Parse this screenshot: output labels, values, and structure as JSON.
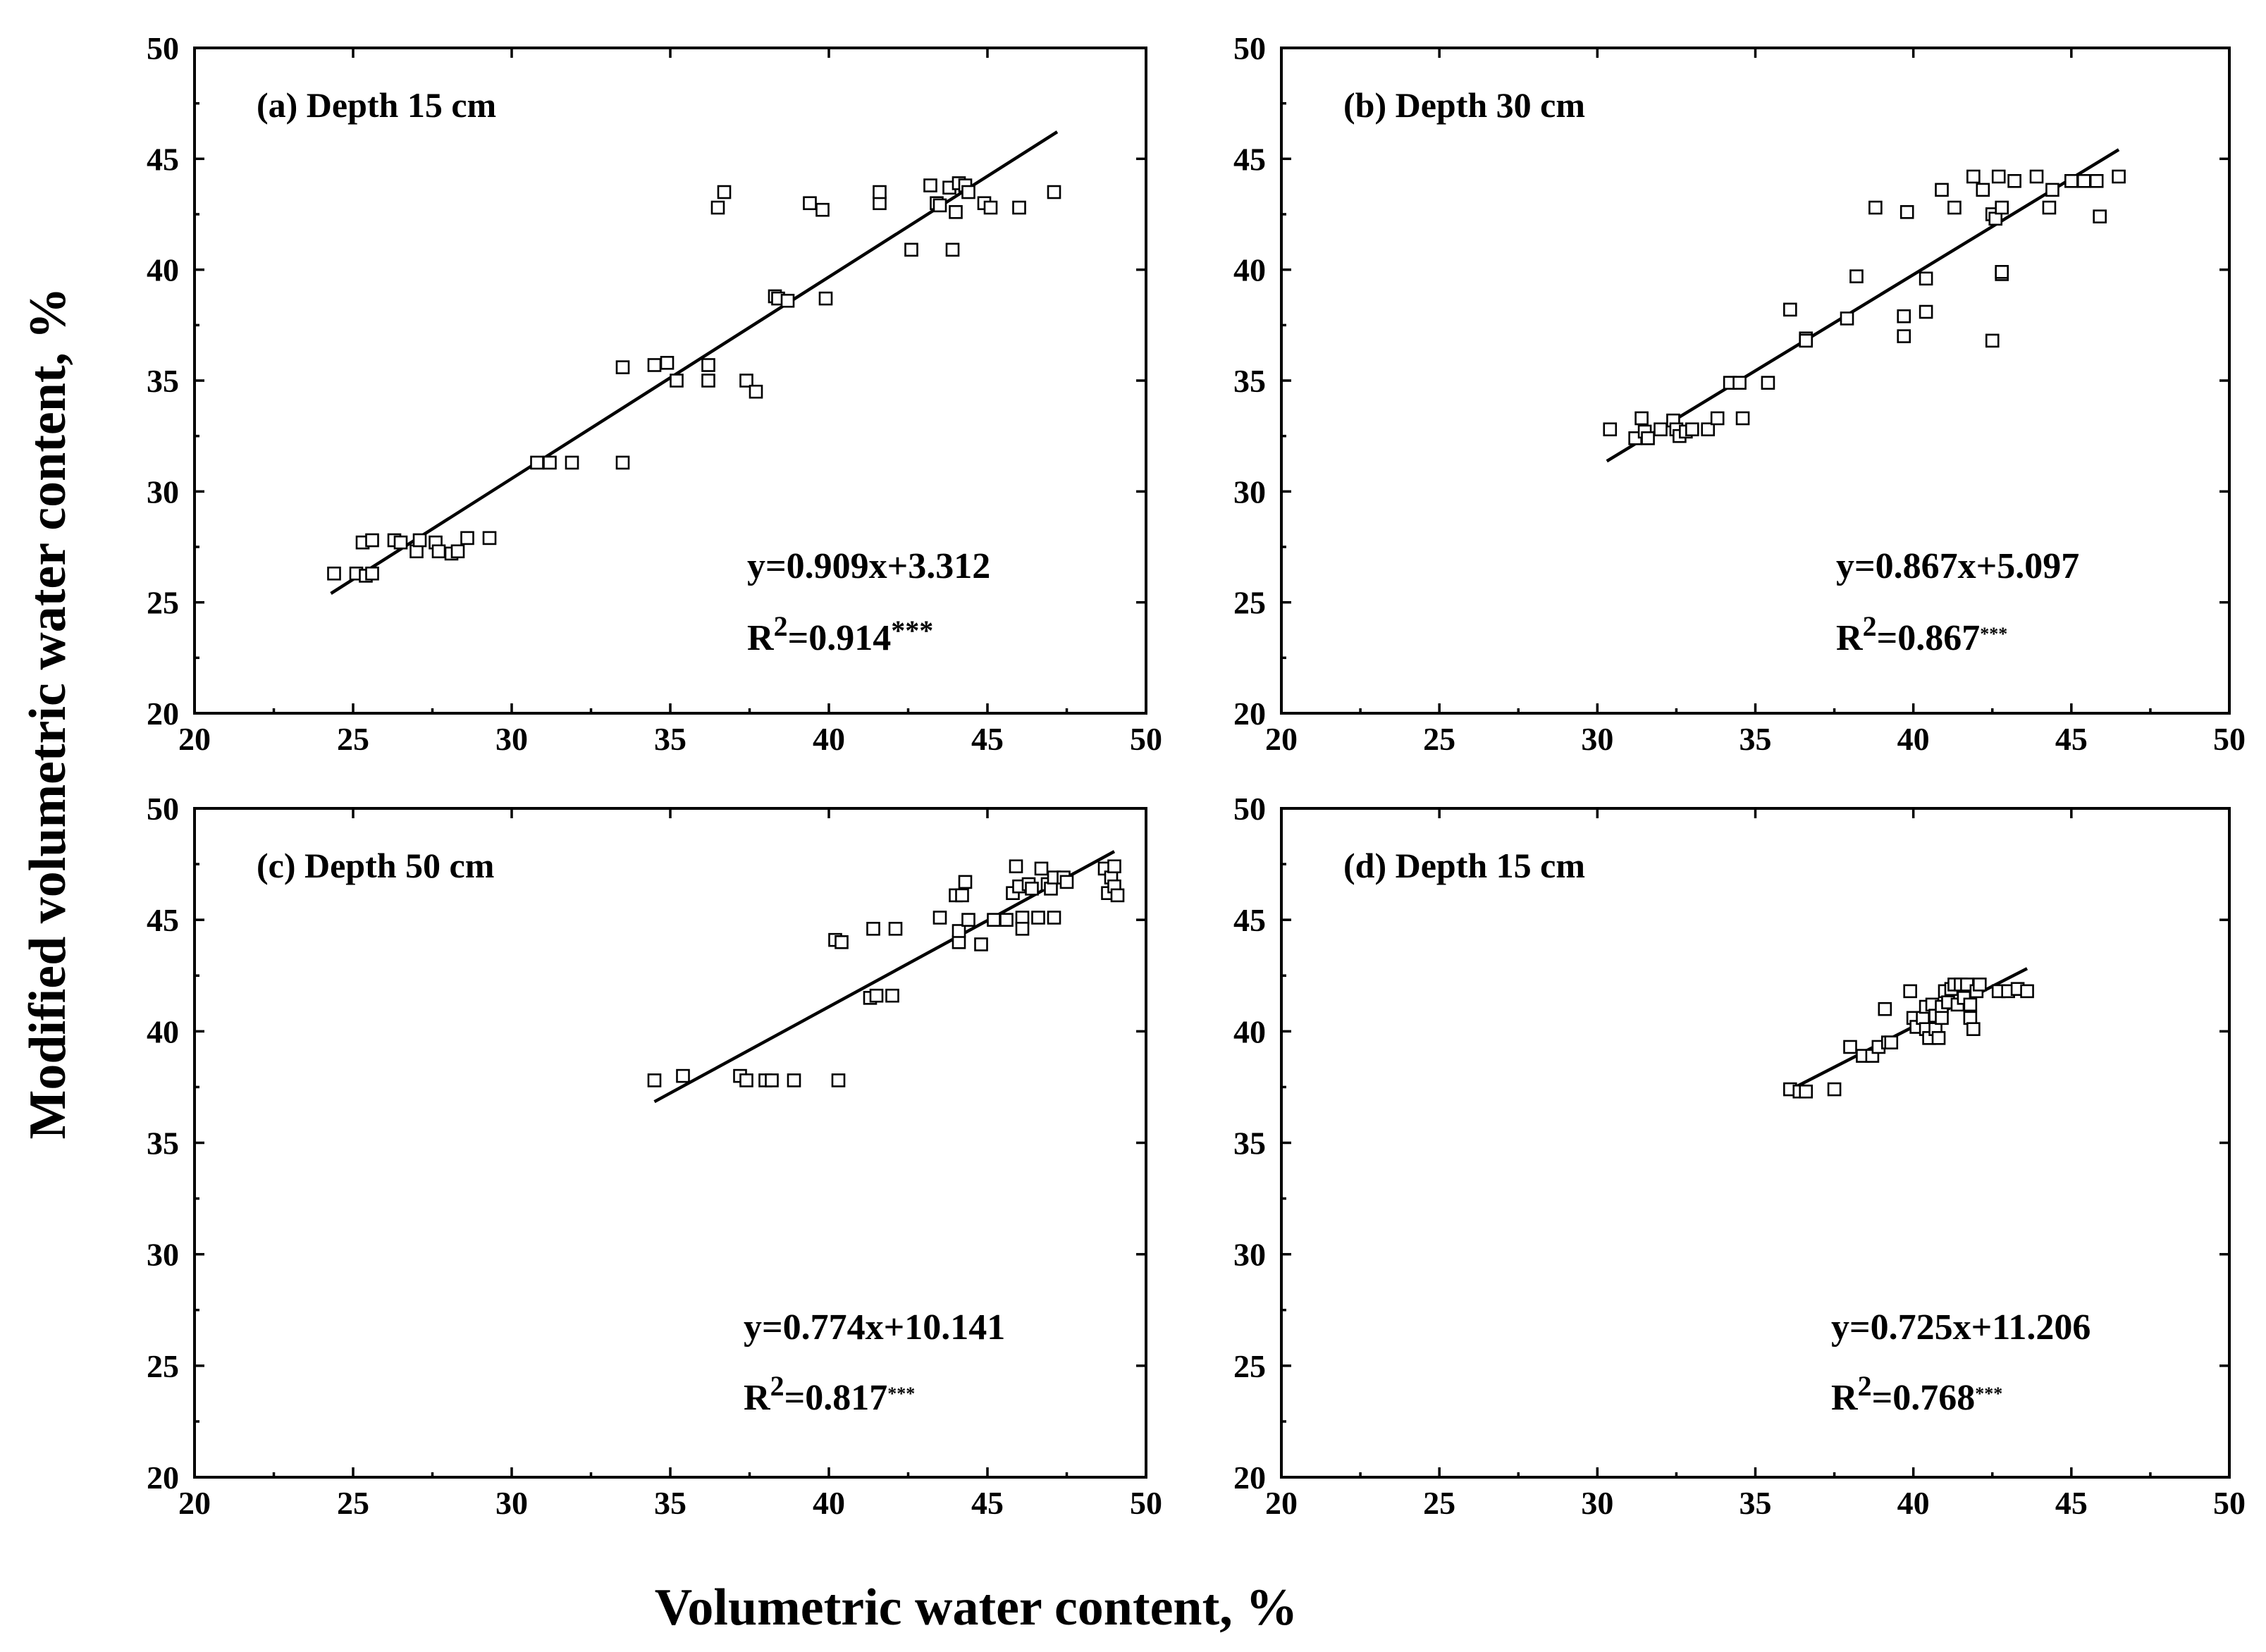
{
  "figure": {
    "xlabel": "Volumetric water content, %",
    "ylabel": "Modified volumetric water content, %"
  },
  "chart_data": [
    {
      "type": "scatter",
      "title": "(a) Depth 15 cm",
      "xlim": [
        20,
        50
      ],
      "ylim": [
        20,
        50
      ],
      "xticks": [
        "20",
        "25",
        "30",
        "35",
        "40",
        "45",
        "50"
      ],
      "yticks": [
        "20",
        "25",
        "30",
        "35",
        "40",
        "45",
        "50"
      ],
      "fit": {
        "slope": 0.909,
        "intercept": 3.312,
        "x_range": [
          24.3,
          47.2
        ]
      },
      "equation": "y=0.909x+3.312",
      "r2_label": "R",
      "r2_sup": "2",
      "r2_value": "=0.914",
      "r2_stars": "***",
      "points": [
        [
          24.4,
          26.3
        ],
        [
          25.1,
          26.3
        ],
        [
          25.3,
          27.7
        ],
        [
          25.4,
          26.2
        ],
        [
          25.6,
          27.8
        ],
        [
          25.6,
          26.3
        ],
        [
          26.3,
          27.8
        ],
        [
          26.5,
          27.7
        ],
        [
          27.0,
          27.3
        ],
        [
          27.1,
          27.8
        ],
        [
          27.6,
          27.7
        ],
        [
          27.7,
          27.3
        ],
        [
          28.1,
          27.2
        ],
        [
          28.3,
          27.3
        ],
        [
          28.6,
          27.9
        ],
        [
          29.3,
          27.9
        ],
        [
          30.8,
          31.3
        ],
        [
          31.2,
          31.3
        ],
        [
          31.9,
          31.3
        ],
        [
          33.5,
          35.6
        ],
        [
          33.5,
          31.3
        ],
        [
          34.5,
          35.7
        ],
        [
          34.9,
          35.8
        ],
        [
          35.2,
          35.0
        ],
        [
          36.2,
          35.0
        ],
        [
          36.2,
          35.7
        ],
        [
          36.5,
          42.8
        ],
        [
          36.7,
          43.5
        ],
        [
          37.4,
          35.0
        ],
        [
          37.7,
          34.5
        ],
        [
          38.3,
          38.8
        ],
        [
          38.4,
          38.7
        ],
        [
          38.7,
          38.6
        ],
        [
          39.4,
          43.0
        ],
        [
          39.8,
          42.7
        ],
        [
          39.9,
          38.7
        ],
        [
          41.6,
          43.0
        ],
        [
          41.6,
          43.5
        ],
        [
          42.6,
          40.9
        ],
        [
          43.2,
          43.8
        ],
        [
          43.4,
          43.0
        ],
        [
          43.5,
          42.9
        ],
        [
          43.8,
          43.7
        ],
        [
          43.9,
          40.9
        ],
        [
          44.0,
          42.6
        ],
        [
          44.1,
          43.9
        ],
        [
          44.3,
          43.8
        ],
        [
          44.4,
          43.5
        ],
        [
          44.9,
          43.0
        ],
        [
          45.1,
          42.8
        ],
        [
          46.0,
          42.8
        ],
        [
          47.1,
          43.5
        ]
      ]
    },
    {
      "type": "scatter",
      "title": "(b) Depth 30 cm",
      "xlim": [
        20,
        50
      ],
      "ylim": [
        20,
        50
      ],
      "xticks": [
        "20",
        "25",
        "30",
        "35",
        "40",
        "45",
        "50"
      ],
      "yticks": [
        "20",
        "25",
        "30",
        "35",
        "40",
        "45",
        "50"
      ],
      "fit": {
        "slope": 0.867,
        "intercept": 5.097,
        "x_range": [
          30.3,
          46.5
        ]
      },
      "equation": "y=0.867x+5.097",
      "r2_label": "R",
      "r2_sup": "2",
      "r2_value": "=0.867",
      "r2_stars": "***",
      "points": [
        [
          30.4,
          32.8
        ],
        [
          31.2,
          32.4
        ],
        [
          31.4,
          33.3
        ],
        [
          31.5,
          32.7
        ],
        [
          31.6,
          32.4
        ],
        [
          32.0,
          32.8
        ],
        [
          32.4,
          33.2
        ],
        [
          32.5,
          32.8
        ],
        [
          32.6,
          32.5
        ],
        [
          32.8,
          32.7
        ],
        [
          33.0,
          32.8
        ],
        [
          33.5,
          32.8
        ],
        [
          33.8,
          33.3
        ],
        [
          34.2,
          34.9
        ],
        [
          34.5,
          34.9
        ],
        [
          34.6,
          33.3
        ],
        [
          35.4,
          34.9
        ],
        [
          36.1,
          38.2
        ],
        [
          36.6,
          36.9
        ],
        [
          36.6,
          36.8
        ],
        [
          37.9,
          37.8
        ],
        [
          38.2,
          39.7
        ],
        [
          38.8,
          42.8
        ],
        [
          39.7,
          37.9
        ],
        [
          39.7,
          37.0
        ],
        [
          39.8,
          42.6
        ],
        [
          40.4,
          38.1
        ],
        [
          40.4,
          39.6
        ],
        [
          40.9,
          43.6
        ],
        [
          41.3,
          42.8
        ],
        [
          41.9,
          44.2
        ],
        [
          42.2,
          43.6
        ],
        [
          42.5,
          42.5
        ],
        [
          42.5,
          36.8
        ],
        [
          42.6,
          42.3
        ],
        [
          42.7,
          44.2
        ],
        [
          42.8,
          42.8
        ],
        [
          42.8,
          39.8
        ],
        [
          42.8,
          39.9
        ],
        [
          43.2,
          44.0
        ],
        [
          43.9,
          44.2
        ],
        [
          44.3,
          42.8
        ],
        [
          44.4,
          43.6
        ],
        [
          45.0,
          44.0
        ],
        [
          45.4,
          44.0
        ],
        [
          45.8,
          44.0
        ],
        [
          45.9,
          42.4
        ],
        [
          46.5,
          44.2
        ]
      ]
    },
    {
      "type": "scatter",
      "title": "(c) Depth 50 cm",
      "xlim": [
        20,
        50
      ],
      "ylim": [
        20,
        50
      ],
      "xticks": [
        "20",
        "25",
        "30",
        "35",
        "40",
        "45",
        "50"
      ],
      "yticks": [
        "20",
        "25",
        "30",
        "35",
        "40",
        "45",
        "50"
      ],
      "fit": {
        "slope": 0.774,
        "intercept": 10.141,
        "x_range": [
          34.5,
          49.0
        ]
      },
      "equation": "y=0.774x+10.141",
      "r2_label": "R",
      "r2_sup": "2",
      "r2_value": "=0.817",
      "r2_stars": "***",
      "points": [
        [
          34.5,
          37.8
        ],
        [
          35.4,
          38.0
        ],
        [
          37.2,
          38.0
        ],
        [
          37.4,
          37.8
        ],
        [
          38.0,
          37.8
        ],
        [
          38.2,
          37.8
        ],
        [
          38.9,
          37.8
        ],
        [
          40.3,
          37.8
        ],
        [
          40.2,
          44.1
        ],
        [
          40.4,
          44.0
        ],
        [
          41.3,
          41.5
        ],
        [
          41.4,
          44.6
        ],
        [
          41.5,
          41.6
        ],
        [
          42.0,
          41.6
        ],
        [
          42.1,
          44.6
        ],
        [
          43.5,
          45.1
        ],
        [
          44.0,
          46.1
        ],
        [
          44.1,
          44.0
        ],
        [
          44.1,
          44.5
        ],
        [
          44.2,
          46.1
        ],
        [
          44.3,
          46.7
        ],
        [
          44.4,
          45.0
        ],
        [
          44.8,
          43.9
        ],
        [
          45.2,
          45.0
        ],
        [
          45.6,
          45.0
        ],
        [
          45.8,
          46.2
        ],
        [
          45.9,
          47.4
        ],
        [
          46.0,
          46.5
        ],
        [
          46.1,
          45.1
        ],
        [
          46.1,
          44.6
        ],
        [
          46.3,
          46.6
        ],
        [
          46.4,
          46.4
        ],
        [
          46.6,
          45.1
        ],
        [
          46.7,
          47.3
        ],
        [
          46.9,
          46.6
        ],
        [
          47.0,
          46.4
        ],
        [
          47.1,
          46.9
        ],
        [
          47.1,
          45.1
        ],
        [
          47.4,
          46.9
        ],
        [
          47.5,
          46.7
        ],
        [
          48.7,
          47.3
        ],
        [
          48.8,
          46.2
        ],
        [
          48.9,
          46.9
        ],
        [
          49.0,
          47.4
        ],
        [
          49.0,
          46.5
        ],
        [
          49.1,
          46.1
        ]
      ]
    },
    {
      "type": "scatter",
      "title": "(d) Depth 15 cm",
      "xlim": [
        20,
        50
      ],
      "ylim": [
        20,
        50
      ],
      "xticks": [
        "20",
        "25",
        "30",
        "35",
        "40",
        "45",
        "50"
      ],
      "yticks": [
        "20",
        "25",
        "30",
        "35",
        "40",
        "45",
        "50"
      ],
      "fit": {
        "slope": 0.725,
        "intercept": 11.206,
        "x_range": [
          36.0,
          43.6
        ]
      },
      "equation": "y=0.725x+11.206",
      "r2_label": "R",
      "r2_sup": "2",
      "r2_value": "=0.768",
      "r2_stars": "***",
      "points": [
        [
          36.1,
          37.4
        ],
        [
          36.4,
          37.3
        ],
        [
          36.6,
          37.3
        ],
        [
          37.5,
          37.4
        ],
        [
          38.0,
          39.3
        ],
        [
          38.4,
          38.9
        ],
        [
          38.7,
          38.9
        ],
        [
          38.9,
          39.3
        ],
        [
          39.1,
          41.0
        ],
        [
          39.2,
          39.5
        ],
        [
          39.3,
          39.5
        ],
        [
          39.9,
          41.8
        ],
        [
          40.0,
          40.6
        ],
        [
          40.1,
          40.2
        ],
        [
          40.3,
          40.6
        ],
        [
          40.4,
          40.1
        ],
        [
          40.4,
          41.1
        ],
        [
          40.5,
          39.7
        ],
        [
          40.6,
          41.2
        ],
        [
          40.7,
          40.7
        ],
        [
          40.7,
          40.1
        ],
        [
          40.8,
          39.7
        ],
        [
          40.9,
          41.1
        ],
        [
          40.9,
          40.6
        ],
        [
          41.0,
          41.8
        ],
        [
          41.1,
          41.3
        ],
        [
          41.2,
          41.9
        ],
        [
          41.3,
          42.1
        ],
        [
          41.4,
          41.2
        ],
        [
          41.5,
          42.1
        ],
        [
          41.6,
          41.5
        ],
        [
          41.7,
          42.1
        ],
        [
          41.8,
          40.6
        ],
        [
          41.8,
          41.2
        ],
        [
          41.9,
          40.1
        ],
        [
          42.0,
          41.8
        ],
        [
          42.1,
          42.1
        ],
        [
          42.7,
          41.8
        ],
        [
          43.0,
          41.8
        ],
        [
          43.3,
          41.9
        ],
        [
          43.6,
          41.8
        ]
      ]
    }
  ]
}
